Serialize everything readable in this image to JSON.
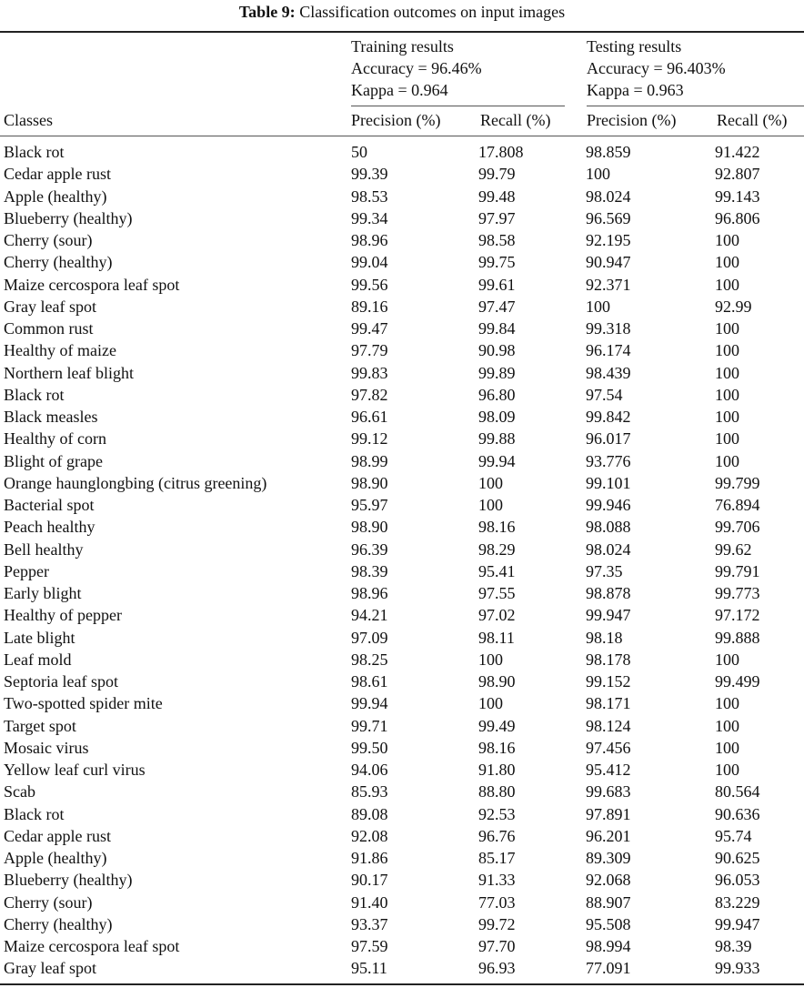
{
  "caption": {
    "label": "Table 9:",
    "text": "Classification outcomes on input images"
  },
  "header": {
    "training": {
      "title": "Training results",
      "accuracy": "Accuracy = 96.46%",
      "kappa": "Kappa = 0.964"
    },
    "testing": {
      "title": "Testing results",
      "accuracy": "Accuracy = 96.403%",
      "kappa": "Kappa = 0.963"
    },
    "columns": [
      "Classes",
      "Precision (%)",
      "Recall (%)",
      "Precision (%)",
      "Recall (%)"
    ]
  },
  "rows": [
    [
      "Black rot",
      "50",
      "17.808",
      "98.859",
      "91.422"
    ],
    [
      "Cedar apple rust",
      "99.39",
      "99.79",
      "100",
      "92.807"
    ],
    [
      "Apple (healthy)",
      "98.53",
      "99.48",
      "98.024",
      "99.143"
    ],
    [
      "Blueberry (healthy)",
      "99.34",
      "97.97",
      "96.569",
      "96.806"
    ],
    [
      "Cherry (sour)",
      "98.96",
      "98.58",
      "92.195",
      "100"
    ],
    [
      "Cherry (healthy)",
      "99.04",
      "99.75",
      "90.947",
      "100"
    ],
    [
      "Maize cercospora leaf spot",
      "99.56",
      "99.61",
      "92.371",
      "100"
    ],
    [
      "Gray leaf spot",
      "89.16",
      "97.47",
      "100",
      "92.99"
    ],
    [
      "Common rust",
      "99.47",
      "99.84",
      "99.318",
      "100"
    ],
    [
      "Healthy of maize",
      "97.79",
      "90.98",
      "96.174",
      "100"
    ],
    [
      "Northern leaf blight",
      "99.83",
      "99.89",
      "98.439",
      "100"
    ],
    [
      "Black rot",
      "97.82",
      "96.80",
      "97.54",
      "100"
    ],
    [
      "Black measles",
      "96.61",
      "98.09",
      "99.842",
      "100"
    ],
    [
      "Healthy of corn",
      "99.12",
      "99.88",
      "96.017",
      "100"
    ],
    [
      "Blight of grape",
      "98.99",
      "99.94",
      "93.776",
      "100"
    ],
    [
      "Orange haunglongbing (citrus greening)",
      "98.90",
      "100",
      "99.101",
      "99.799"
    ],
    [
      "Bacterial spot",
      "95.97",
      "100",
      "99.946",
      "76.894"
    ],
    [
      "Peach healthy",
      "98.90",
      "98.16",
      "98.088",
      "99.706"
    ],
    [
      "Bell healthy",
      "96.39",
      "98.29",
      "98.024",
      "99.62"
    ],
    [
      "Pepper",
      "98.39",
      "95.41",
      "97.35",
      "99.791"
    ],
    [
      "Early blight",
      "98.96",
      "97.55",
      "98.878",
      "99.773"
    ],
    [
      "Healthy of pepper",
      "94.21",
      "97.02",
      "99.947",
      "97.172"
    ],
    [
      "Late blight",
      "97.09",
      "98.11",
      "98.18",
      "99.888"
    ],
    [
      "Leaf mold",
      "98.25",
      "100",
      "98.178",
      "100"
    ],
    [
      "Septoria leaf spot",
      "98.61",
      "98.90",
      "99.152",
      "99.499"
    ],
    [
      "Two-spotted spider mite",
      "99.94",
      "100",
      "98.171",
      "100"
    ],
    [
      "Target spot",
      "99.71",
      "99.49",
      "98.124",
      "100"
    ],
    [
      "Mosaic virus",
      "99.50",
      "98.16",
      "97.456",
      "100"
    ],
    [
      "Yellow leaf curl virus",
      "94.06",
      "91.80",
      "95.412",
      "100"
    ],
    [
      "Scab",
      "85.93",
      "88.80",
      "99.683",
      "80.564"
    ],
    [
      "Black rot",
      "89.08",
      "92.53",
      "97.891",
      "90.636"
    ],
    [
      "Cedar apple rust",
      "92.08",
      "96.76",
      "96.201",
      "95.74"
    ],
    [
      "Apple (healthy)",
      "91.86",
      "85.17",
      "89.309",
      "90.625"
    ],
    [
      "Blueberry (healthy)",
      "90.17",
      "91.33",
      "92.068",
      "96.053"
    ],
    [
      "Cherry (sour)",
      "91.40",
      "77.03",
      "88.907",
      "83.229"
    ],
    [
      "Cherry (healthy)",
      "93.37",
      "99.72",
      "95.508",
      "99.947"
    ],
    [
      "Maize cercospora leaf spot",
      "97.59",
      "97.70",
      "98.994",
      "98.39"
    ],
    [
      "Gray leaf spot",
      "95.11",
      "96.93",
      "77.091",
      "99.933"
    ]
  ]
}
